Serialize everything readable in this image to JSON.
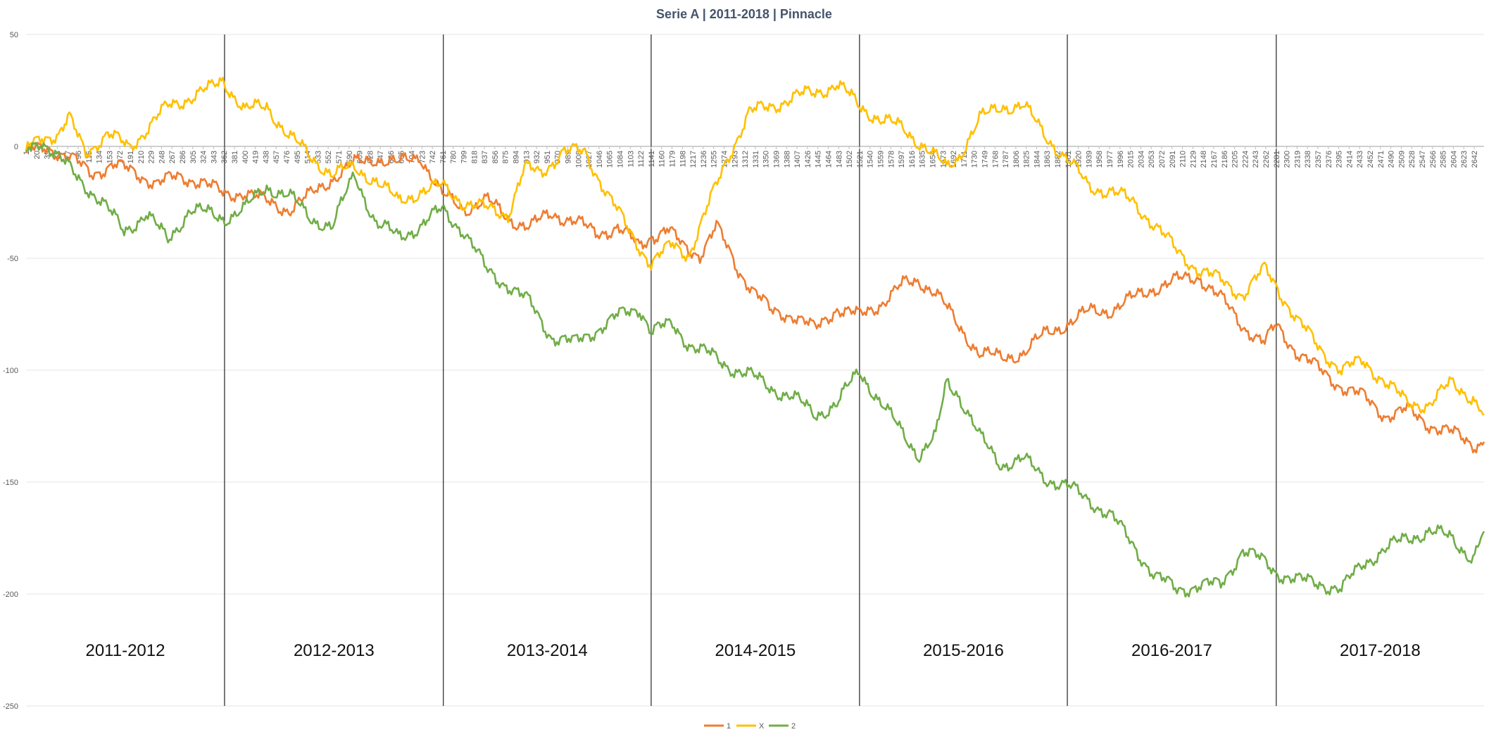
{
  "chart_data": {
    "type": "line",
    "title": "Serie A | 2011-2018 | Pinnacle",
    "xlabel": "",
    "ylabel": "",
    "xlim": [
      1,
      2660
    ],
    "ylim": [
      -250,
      50
    ],
    "yticks": [
      50,
      0,
      -50,
      -100,
      -150,
      -200,
      -250
    ],
    "xtick_start": 1,
    "xtick_step": 19,
    "xtick_count": 140,
    "gridlines": true,
    "legend_position": "bottom",
    "season_separators": [
      363,
      762,
      1141,
      1521,
      1900,
      2281
    ],
    "seasons": [
      {
        "label": "2011-2012",
        "start": 1,
        "end": 363
      },
      {
        "label": "2012-2013",
        "start": 363,
        "end": 762
      },
      {
        "label": "2013-2014",
        "start": 762,
        "end": 1141
      },
      {
        "label": "2014-2015",
        "start": 1141,
        "end": 1521
      },
      {
        "label": "2015-2016",
        "start": 1521,
        "end": 1900
      },
      {
        "label": "2016-2017",
        "start": 1900,
        "end": 2281
      },
      {
        "label": "2017-2018",
        "start": 2281,
        "end": 2660
      }
    ],
    "series": [
      {
        "name": "1",
        "color": "#ed7d31",
        "points": [
          [
            1,
            -3
          ],
          [
            40,
            0
          ],
          [
            80,
            -5
          ],
          [
            120,
            -12
          ],
          [
            160,
            -8
          ],
          [
            200,
            -12
          ],
          [
            240,
            -16
          ],
          [
            280,
            -14
          ],
          [
            320,
            -15
          ],
          [
            363,
            -22
          ],
          [
            400,
            -20
          ],
          [
            440,
            -25
          ],
          [
            480,
            -28
          ],
          [
            520,
            -22
          ],
          [
            560,
            -14
          ],
          [
            600,
            -8
          ],
          [
            640,
            -5
          ],
          [
            680,
            -8
          ],
          [
            720,
            -4
          ],
          [
            760,
            -22
          ],
          [
            800,
            -28
          ],
          [
            840,
            -24
          ],
          [
            880,
            -32
          ],
          [
            920,
            -36
          ],
          [
            960,
            -30
          ],
          [
            1000,
            -33
          ],
          [
            1040,
            -39
          ],
          [
            1080,
            -36
          ],
          [
            1120,
            -45
          ],
          [
            1141,
            -40
          ],
          [
            1170,
            -37
          ],
          [
            1200,
            -45
          ],
          [
            1230,
            -48
          ],
          [
            1260,
            -36
          ],
          [
            1300,
            -55
          ],
          [
            1330,
            -65
          ],
          [
            1360,
            -74
          ],
          [
            1400,
            -75
          ],
          [
            1440,
            -82
          ],
          [
            1480,
            -72
          ],
          [
            1521,
            -76
          ],
          [
            1560,
            -70
          ],
          [
            1600,
            -62
          ],
          [
            1630,
            -60
          ],
          [
            1660,
            -65
          ],
          [
            1700,
            -80
          ],
          [
            1740,
            -92
          ],
          [
            1780,
            -95
          ],
          [
            1820,
            -92
          ],
          [
            1860,
            -84
          ],
          [
            1900,
            -79
          ],
          [
            1940,
            -74
          ],
          [
            1980,
            -73
          ],
          [
            2020,
            -68
          ],
          [
            2060,
            -63
          ],
          [
            2100,
            -60
          ],
          [
            2140,
            -58
          ],
          [
            2180,
            -68
          ],
          [
            2220,
            -80
          ],
          [
            2260,
            -88
          ],
          [
            2281,
            -80
          ],
          [
            2320,
            -92
          ],
          [
            2360,
            -100
          ],
          [
            2400,
            -107
          ],
          [
            2440,
            -112
          ],
          [
            2480,
            -120
          ],
          [
            2520,
            -118
          ],
          [
            2560,
            -124
          ],
          [
            2600,
            -128
          ],
          [
            2640,
            -133
          ],
          [
            2660,
            -132
          ]
        ]
      },
      {
        "name": "X",
        "color": "#ffc000",
        "points": [
          [
            1,
            -2
          ],
          [
            30,
            5
          ],
          [
            60,
            5
          ],
          [
            80,
            12
          ],
          [
            110,
            -2
          ],
          [
            150,
            5
          ],
          [
            190,
            0
          ],
          [
            230,
            10
          ],
          [
            260,
            18
          ],
          [
            300,
            22
          ],
          [
            340,
            26
          ],
          [
            360,
            30
          ],
          [
            400,
            16
          ],
          [
            440,
            18
          ],
          [
            480,
            5
          ],
          [
            520,
            -5
          ],
          [
            560,
            -12
          ],
          [
            600,
            -10
          ],
          [
            640,
            -15
          ],
          [
            680,
            -25
          ],
          [
            720,
            -20
          ],
          [
            760,
            -18
          ],
          [
            800,
            -25
          ],
          [
            840,
            -28
          ],
          [
            880,
            -30
          ],
          [
            910,
            -10
          ],
          [
            940,
            -12
          ],
          [
            980,
            -2
          ],
          [
            1020,
            -3
          ],
          [
            1060,
            -20
          ],
          [
            1100,
            -38
          ],
          [
            1141,
            -52
          ],
          [
            1180,
            -44
          ],
          [
            1210,
            -48
          ],
          [
            1240,
            -30
          ],
          [
            1280,
            -5
          ],
          [
            1320,
            15
          ],
          [
            1360,
            18
          ],
          [
            1400,
            22
          ],
          [
            1440,
            24
          ],
          [
            1480,
            28
          ],
          [
            1521,
            18
          ],
          [
            1560,
            12
          ],
          [
            1600,
            8
          ],
          [
            1640,
            0
          ],
          [
            1680,
            -10
          ],
          [
            1700,
            -5
          ],
          [
            1740,
            12
          ],
          [
            1780,
            18
          ],
          [
            1820,
            18
          ],
          [
            1860,
            5
          ],
          [
            1900,
            -6
          ],
          [
            1940,
            -18
          ],
          [
            1980,
            -20
          ],
          [
            2020,
            -25
          ],
          [
            2060,
            -35
          ],
          [
            2100,
            -47
          ],
          [
            2140,
            -55
          ],
          [
            2180,
            -60
          ],
          [
            2220,
            -66
          ],
          [
            2260,
            -55
          ],
          [
            2281,
            -62
          ],
          [
            2320,
            -78
          ],
          [
            2360,
            -90
          ],
          [
            2400,
            -100
          ],
          [
            2440,
            -96
          ],
          [
            2480,
            -105
          ],
          [
            2520,
            -115
          ],
          [
            2560,
            -115
          ],
          [
            2600,
            -106
          ],
          [
            2640,
            -112
          ],
          [
            2660,
            -120
          ]
        ]
      },
      {
        "name": "2",
        "color": "#70ad47",
        "points": [
          [
            1,
            -2
          ],
          [
            30,
            3
          ],
          [
            60,
            -5
          ],
          [
            100,
            -15
          ],
          [
            140,
            -25
          ],
          [
            180,
            -38
          ],
          [
            220,
            -30
          ],
          [
            260,
            -42
          ],
          [
            300,
            -28
          ],
          [
            363,
            -32
          ],
          [
            400,
            -28
          ],
          [
            440,
            -18
          ],
          [
            480,
            -22
          ],
          [
            520,
            -32
          ],
          [
            560,
            -36
          ],
          [
            600,
            -12
          ],
          [
            640,
            -35
          ],
          [
            680,
            -40
          ],
          [
            720,
            -36
          ],
          [
            760,
            -28
          ],
          [
            800,
            -38
          ],
          [
            840,
            -55
          ],
          [
            880,
            -62
          ],
          [
            920,
            -70
          ],
          [
            960,
            -85
          ],
          [
            1000,
            -88
          ],
          [
            1040,
            -82
          ],
          [
            1080,
            -76
          ],
          [
            1120,
            -72
          ],
          [
            1141,
            -82
          ],
          [
            1180,
            -80
          ],
          [
            1210,
            -88
          ],
          [
            1240,
            -92
          ],
          [
            1280,
            -98
          ],
          [
            1320,
            -102
          ],
          [
            1360,
            -108
          ],
          [
            1400,
            -112
          ],
          [
            1440,
            -120
          ],
          [
            1480,
            -115
          ],
          [
            1521,
            -100
          ],
          [
            1560,
            -115
          ],
          [
            1600,
            -128
          ],
          [
            1630,
            -138
          ],
          [
            1660,
            -130
          ],
          [
            1680,
            -105
          ],
          [
            1700,
            -110
          ],
          [
            1740,
            -130
          ],
          [
            1780,
            -142
          ],
          [
            1820,
            -140
          ],
          [
            1860,
            -148
          ],
          [
            1900,
            -152
          ],
          [
            1940,
            -158
          ],
          [
            1980,
            -165
          ],
          [
            2020,
            -178
          ],
          [
            2060,
            -192
          ],
          [
            2100,
            -198
          ],
          [
            2140,
            -196
          ],
          [
            2180,
            -196
          ],
          [
            2220,
            -180
          ],
          [
            2260,
            -186
          ],
          [
            2281,
            -190
          ],
          [
            2320,
            -194
          ],
          [
            2360,
            -195
          ],
          [
            2400,
            -198
          ],
          [
            2440,
            -186
          ],
          [
            2480,
            -180
          ],
          [
            2520,
            -175
          ],
          [
            2560,
            -172
          ],
          [
            2600,
            -175
          ],
          [
            2640,
            -184
          ],
          [
            2660,
            -172
          ]
        ]
      }
    ]
  }
}
